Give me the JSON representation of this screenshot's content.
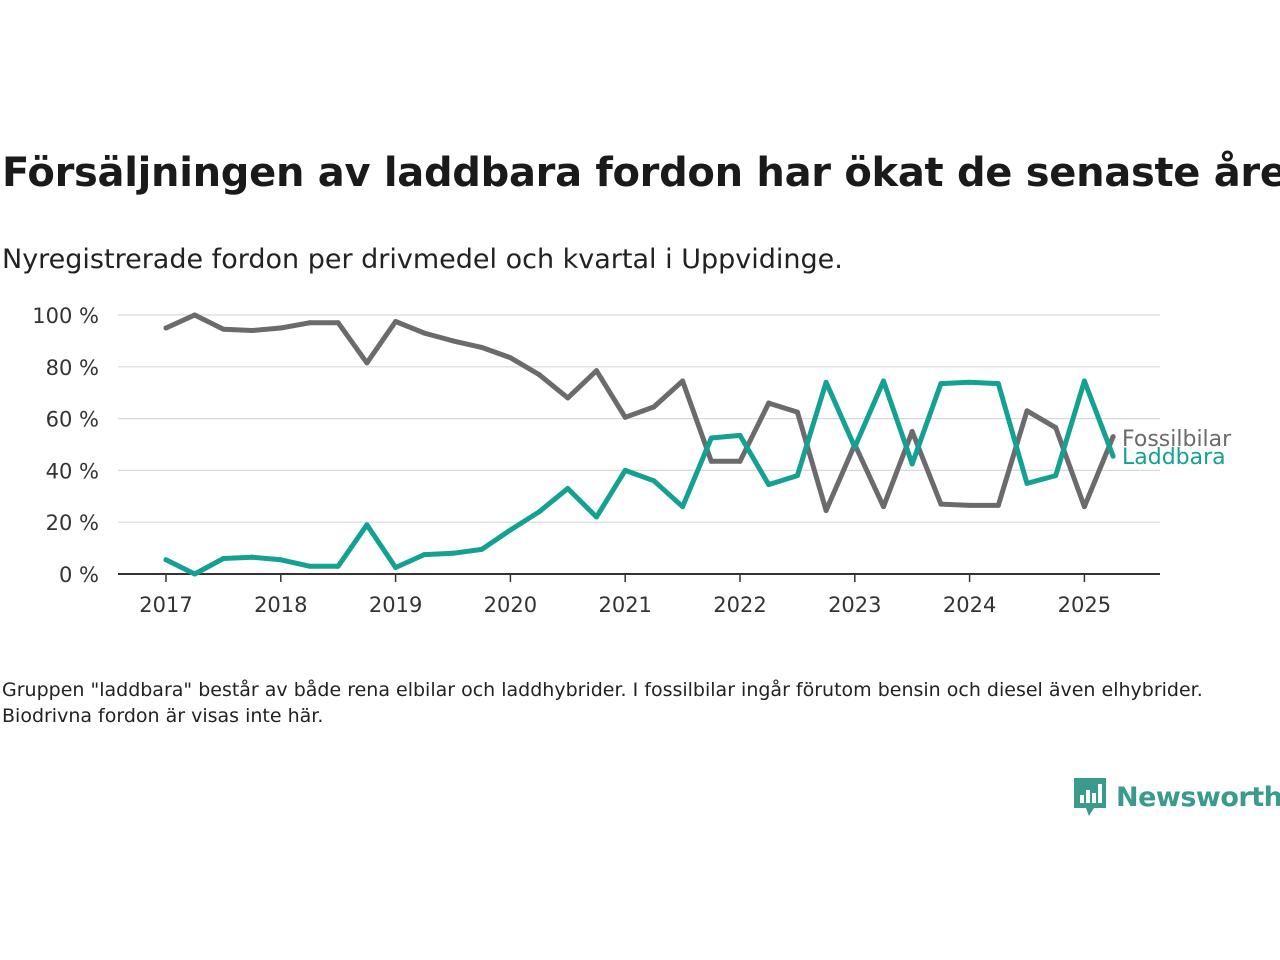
{
  "title": "Försäljningen av laddbara fordon har ökat de senaste åren",
  "subtitle": "Nyregistrerade fordon per drivmedel och kvartal i Uppvidinge.",
  "note": "Gruppen \"laddbara\" består av både rena elbilar och laddhybrider. I fossilbilar ingår förutom bensin och diesel även elhybrider. Biodrivna fordon är visas inte här.",
  "brand": {
    "name": "Newsworthy",
    "icon": "newsworthy-logo-icon",
    "color": "#3a9a8c"
  },
  "chart_data": {
    "type": "line",
    "x": [
      "2017-Q1",
      "2017-Q2",
      "2017-Q3",
      "2017-Q4",
      "2018-Q1",
      "2018-Q2",
      "2018-Q3",
      "2018-Q4",
      "2019-Q1",
      "2019-Q2",
      "2019-Q3",
      "2019-Q4",
      "2020-Q1",
      "2020-Q2",
      "2020-Q3",
      "2020-Q4",
      "2021-Q1",
      "2021-Q2",
      "2021-Q3",
      "2021-Q4",
      "2022-Q1",
      "2022-Q2",
      "2022-Q3",
      "2022-Q4",
      "2023-Q1",
      "2023-Q2",
      "2023-Q3",
      "2023-Q4",
      "2024-Q1",
      "2024-Q2",
      "2024-Q3",
      "2024-Q4",
      "2025-Q1",
      "2025-Q2"
    ],
    "x_ticks": [
      "2017",
      "2018",
      "2019",
      "2020",
      "2021",
      "2022",
      "2023",
      "2024",
      "2025"
    ],
    "y_ticks": [
      "0 %",
      "20 %",
      "40 %",
      "60 %",
      "80 %",
      "100 %"
    ],
    "ylim": [
      0,
      100
    ],
    "grid": true,
    "series": [
      {
        "name": "Fossilbilar",
        "color": "#6b6b6e",
        "values": [
          95,
          100,
          94.5,
          94,
          95,
          97,
          97,
          81.5,
          97.5,
          93,
          90,
          87.5,
          83.5,
          77,
          68,
          78.5,
          60.5,
          64.5,
          74.5,
          43.5,
          43.5,
          66,
          62.5,
          24.5,
          50,
          26,
          55,
          27,
          26.5,
          26.5,
          63,
          56.5,
          26,
          53
        ]
      },
      {
        "name": "Laddbara",
        "color": "#14a191",
        "values": [
          5.5,
          0,
          6,
          6.5,
          5.5,
          3,
          3,
          19,
          2.5,
          7.5,
          8,
          9.5,
          17,
          24,
          33,
          22,
          40,
          36,
          26,
          52.5,
          53.5,
          34.5,
          38,
          74,
          49,
          74.5,
          42.5,
          73.5,
          74,
          73.5,
          35,
          38,
          74.5,
          45.5
        ]
      }
    ]
  }
}
